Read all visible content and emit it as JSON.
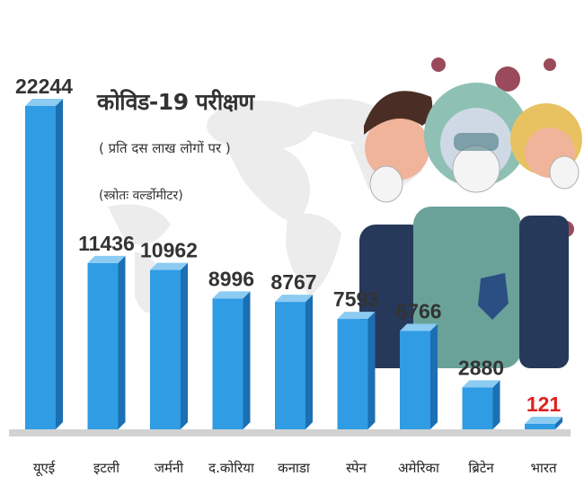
{
  "title": "कोविड-19 परीक्षण",
  "subtitle": "( प्रति दस लाख लोगों पर )",
  "source": "(स्त्रोतः वर्ल्डोमीटर)",
  "colors": {
    "bar_front": "#2f9ce3",
    "bar_side": "#1b6fb2",
    "bar_top": "#8ccbf2",
    "value_text": "#333333",
    "highlight_text": "#e02020",
    "map": "#ececec",
    "floor": "#d2d2d2"
  },
  "decoration": "world-map-and-masked-people-illustration",
  "chart_data": {
    "type": "bar",
    "title": "कोविड-19 परीक्षण",
    "subtitle": "( प्रति दस लाख लोगों पर )",
    "categories": [
      "यूएई",
      "इटली",
      "जर्मनी",
      "द.कोरिया",
      "कनाडा",
      "स्पेन",
      "अमेरिका",
      "ब्रिटेन",
      "भारत"
    ],
    "values": [
      22244,
      11436,
      10962,
      8996,
      8767,
      7593,
      6766,
      2880,
      121
    ],
    "value_labels": [
      "22244",
      "11436",
      "10962",
      "8996",
      "8767",
      "7593",
      "6766",
      "2880",
      "121"
    ],
    "highlight": "भारत",
    "ylim": [
      0,
      22244
    ],
    "grid": false,
    "legend": "none"
  }
}
